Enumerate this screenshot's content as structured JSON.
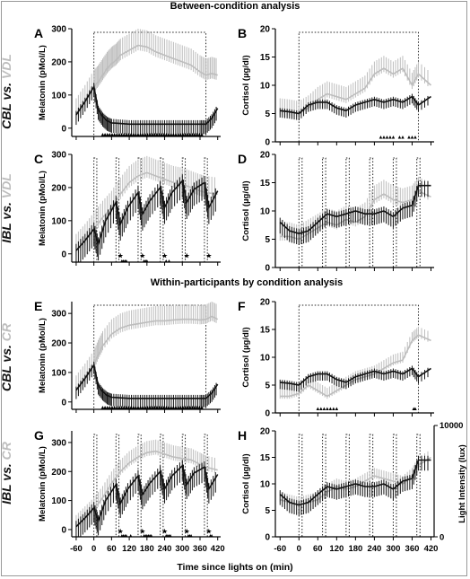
{
  "figure": {
    "title_between": "Between-condition analysis",
    "title_within": "Within-participants by condition analysis",
    "xlabel": "Time since lights on (min)",
    "row_labels": [
      {
        "a": "CBL",
        "vs": " vs. ",
        "b": "VDL"
      },
      {
        "a": "IBL",
        "vs": " vs. ",
        "b": "VDL"
      },
      {
        "a": "CBL",
        "vs": " vs. ",
        "b": "CR"
      },
      {
        "a": "IBL",
        "vs": " vs. ",
        "b": "CR"
      }
    ],
    "colors": {
      "black_series": "#111111",
      "gray_series": "#bdbdbd",
      "axis": "#000000"
    }
  },
  "chart_data": [
    {
      "panel": "A",
      "type": "line",
      "ylabel": "Melatonin (pMol/L)",
      "xticks": [
        -60,
        0,
        60,
        120,
        180,
        240,
        300,
        360,
        420
      ],
      "show_xticks": false,
      "yticks": [
        0,
        100,
        200,
        300
      ],
      "ylim": [
        -25,
        300
      ],
      "xlim": [
        -75,
        430
      ],
      "lights_box": [
        [
          0,
          380
        ]
      ],
      "series": [
        {
          "color": "black",
          "x": [
            -60,
            -30,
            0,
            15,
            30,
            45,
            60,
            90,
            120,
            150,
            180,
            210,
            240,
            270,
            300,
            330,
            360,
            380,
            400,
            420
          ],
          "y": [
            40,
            80,
            125,
            55,
            35,
            22,
            16,
            14,
            12,
            12,
            12,
            12,
            12,
            12,
            12,
            12,
            12,
            12,
            30,
            60
          ],
          "err": 30
        },
        {
          "color": "gray",
          "x": [
            -60,
            -30,
            0,
            15,
            30,
            45,
            60,
            75,
            90,
            120,
            150,
            180,
            210,
            240,
            270,
            300,
            330,
            360,
            380,
            400,
            420
          ],
          "y": [
            40,
            80,
            125,
            140,
            160,
            180,
            195,
            205,
            220,
            235,
            250,
            245,
            230,
            220,
            210,
            200,
            190,
            170,
            160,
            165,
            160
          ],
          "err": 50
        }
      ],
      "markers": [
        {
          "symbol": "▲",
          "x_range": [
            30,
            370
          ],
          "y": -15
        }
      ]
    },
    {
      "panel": "B",
      "type": "line",
      "ylabel": "Cortisol (µg/dl)",
      "xticks": [
        -60,
        0,
        60,
        120,
        180,
        240,
        300,
        360,
        420
      ],
      "show_xticks": false,
      "yticks": [
        0,
        5,
        10,
        15,
        20
      ],
      "ylim": [
        0,
        20
      ],
      "xlim": [
        -75,
        430
      ],
      "lights_box": [
        [
          0,
          380
        ]
      ],
      "series": [
        {
          "color": "black",
          "x": [
            -60,
            -30,
            0,
            30,
            60,
            90,
            120,
            150,
            180,
            210,
            240,
            270,
            300,
            330,
            360,
            380,
            420
          ],
          "y": [
            5.5,
            5.3,
            5.0,
            6.5,
            7.0,
            7.0,
            6.0,
            5.5,
            6.5,
            7.0,
            7.5,
            7.0,
            7.5,
            7.0,
            8.0,
            6.5,
            8.0
          ],
          "err": 1.2
        },
        {
          "color": "gray",
          "x": [
            -60,
            -30,
            0,
            30,
            60,
            90,
            120,
            150,
            180,
            210,
            240,
            270,
            300,
            330,
            360,
            380,
            420
          ],
          "y": [
            5.5,
            5.3,
            5.0,
            6.0,
            7.5,
            8.5,
            8.0,
            7.5,
            8.5,
            9.5,
            12.0,
            13.0,
            12.0,
            13.0,
            10.0,
            12.0,
            10.0
          ],
          "err": 2.2
        }
      ],
      "markers": [
        {
          "symbol": "▲",
          "x": [
            260,
            270,
            280,
            290,
            300,
            320,
            330,
            350,
            360,
            370
          ],
          "y": 1
        }
      ]
    },
    {
      "panel": "C",
      "type": "line",
      "ylabel": "Melatonin (pMol/L)",
      "xticks": [
        -60,
        0,
        60,
        120,
        180,
        240,
        300,
        360,
        420
      ],
      "show_xticks": false,
      "yticks": [
        0,
        100,
        200,
        300
      ],
      "ylim": [
        -25,
        300
      ],
      "xlim": [
        -75,
        430
      ],
      "lights_box": [
        [
          0,
          10
        ],
        [
          75,
          85
        ],
        [
          150,
          160
        ],
        [
          225,
          235
        ],
        [
          300,
          310
        ],
        [
          375,
          385
        ]
      ],
      "series": [
        {
          "color": "black",
          "x": [
            -60,
            -30,
            0,
            15,
            40,
            75,
            90,
            115,
            150,
            165,
            190,
            225,
            240,
            265,
            300,
            315,
            340,
            375,
            390,
            420
          ],
          "y": [
            10,
            40,
            75,
            30,
            100,
            155,
            90,
            140,
            185,
            120,
            160,
            200,
            140,
            185,
            220,
            155,
            195,
            215,
            140,
            190
          ],
          "err": 50
        },
        {
          "color": "gray",
          "x": [
            -60,
            -30,
            0,
            30,
            60,
            90,
            120,
            150,
            180,
            210,
            240,
            270,
            300,
            330,
            360,
            380,
            420
          ],
          "y": [
            10,
            40,
            75,
            110,
            140,
            180,
            215,
            235,
            245,
            235,
            225,
            215,
            210,
            200,
            190,
            185,
            180
          ],
          "err": 50
        }
      ],
      "markers": [
        {
          "symbol": "★",
          "x": [
            90,
            165,
            240,
            315,
            390
          ],
          "y": -5
        },
        {
          "symbol": "▲",
          "x": [
            95,
            100,
            105,
            110,
            170,
            175,
            180,
            245,
            255
          ],
          "y": -18
        }
      ]
    },
    {
      "panel": "D",
      "type": "line",
      "ylabel": "Cortisol (µg/dl)",
      "xticks": [
        -60,
        0,
        60,
        120,
        180,
        240,
        300,
        360,
        420
      ],
      "show_xticks": false,
      "yticks": [
        0,
        5,
        10,
        15,
        20
      ],
      "ylim": [
        0,
        20
      ],
      "xlim": [
        -75,
        430
      ],
      "lights_box": [
        [
          0,
          10
        ],
        [
          75,
          85
        ],
        [
          150,
          160
        ],
        [
          225,
          235
        ],
        [
          300,
          310
        ],
        [
          375,
          385
        ]
      ],
      "series": [
        {
          "color": "black",
          "x": [
            -60,
            -30,
            0,
            30,
            60,
            90,
            120,
            150,
            180,
            210,
            240,
            270,
            300,
            330,
            360,
            380,
            420
          ],
          "y": [
            8.0,
            6.5,
            6.0,
            6.5,
            8.0,
            9.5,
            9.0,
            9.5,
            10.0,
            9.5,
            9.5,
            10.0,
            9.0,
            10.5,
            11.0,
            14.5,
            14.5
          ],
          "err": 2
        },
        {
          "color": "gray",
          "x": [
            -60,
            -30,
            0,
            30,
            60,
            90,
            120,
            150,
            180,
            210,
            240,
            270,
            300,
            330,
            360,
            380,
            420
          ],
          "y": [
            5.5,
            5.5,
            5.0,
            6.0,
            7.0,
            8.0,
            7.5,
            8.5,
            8.0,
            9.0,
            12.0,
            13.0,
            12.0,
            11.5,
            12.0,
            13.5,
            12.5
          ],
          "err": 2.5
        }
      ],
      "markers": []
    },
    {
      "panel": "E",
      "type": "line",
      "ylabel": "Melatonin (pMol/L)",
      "xticks": [
        -60,
        0,
        60,
        120,
        180,
        240,
        300,
        360,
        420
      ],
      "show_xticks": false,
      "yticks": [
        0,
        100,
        200,
        300
      ],
      "ylim": [
        -25,
        340
      ],
      "xlim": [
        -75,
        430
      ],
      "lights_box": [
        [
          0,
          380
        ]
      ],
      "series": [
        {
          "color": "black",
          "x": [
            -60,
            -30,
            0,
            15,
            30,
            45,
            60,
            90,
            120,
            150,
            180,
            210,
            240,
            270,
            300,
            330,
            360,
            380,
            400,
            420
          ],
          "y": [
            40,
            80,
            125,
            55,
            35,
            22,
            16,
            14,
            12,
            12,
            12,
            12,
            12,
            12,
            12,
            12,
            12,
            12,
            30,
            60
          ],
          "err": 30
        },
        {
          "color": "gray",
          "x": [
            -60,
            -30,
            0,
            15,
            30,
            60,
            90,
            120,
            150,
            180,
            210,
            240,
            270,
            300,
            330,
            360,
            380,
            400,
            420
          ],
          "y": [
            40,
            80,
            125,
            160,
            190,
            230,
            250,
            260,
            265,
            270,
            275,
            275,
            278,
            280,
            280,
            278,
            280,
            290,
            280
          ],
          "err": 50
        }
      ],
      "markers": [
        {
          "symbol": "▲",
          "x_range": [
            30,
            370
          ],
          "y": -15
        }
      ]
    },
    {
      "panel": "F",
      "type": "line",
      "ylabel": "Cortisol (µg/dl)",
      "xticks": [
        -60,
        0,
        60,
        120,
        180,
        240,
        300,
        360,
        420
      ],
      "show_xticks": false,
      "yticks": [
        0,
        5,
        10,
        15,
        20
      ],
      "ylim": [
        0,
        20
      ],
      "xlim": [
        -75,
        430
      ],
      "lights_box": [
        [
          0,
          380
        ]
      ],
      "series": [
        {
          "color": "black",
          "x": [
            -60,
            -30,
            0,
            30,
            60,
            90,
            120,
            150,
            180,
            210,
            240,
            270,
            300,
            330,
            360,
            380,
            420
          ],
          "y": [
            5.5,
            5.3,
            5.0,
            6.5,
            7.0,
            7.0,
            6.0,
            5.5,
            6.5,
            7.0,
            7.5,
            7.0,
            7.5,
            7.0,
            8.0,
            6.5,
            8.0
          ],
          "err": 1.2
        },
        {
          "color": "gray",
          "x": [
            -60,
            -30,
            0,
            30,
            60,
            90,
            120,
            150,
            180,
            210,
            240,
            270,
            300,
            330,
            360,
            380,
            420
          ],
          "y": [
            3.0,
            3.0,
            3.5,
            5.0,
            4.0,
            3.0,
            4.0,
            5.0,
            6.0,
            6.5,
            7.0,
            8.0,
            9.0,
            9.5,
            13.0,
            14.0,
            13.0
          ],
          "err": 1.5
        }
      ],
      "markers": [
        {
          "symbol": "▲",
          "x": [
            60,
            70,
            80,
            90,
            100,
            110,
            120,
            365,
            370
          ],
          "y": 1
        }
      ]
    },
    {
      "panel": "G",
      "type": "line",
      "ylabel": "Melatonin (pMol/L)",
      "xticks": [
        -60,
        0,
        60,
        120,
        180,
        240,
        300,
        360,
        420
      ],
      "show_xticks": true,
      "yticks": [
        0,
        100,
        200,
        300
      ],
      "ylim": [
        -25,
        340
      ],
      "xlim": [
        -75,
        430
      ],
      "lights_box": [
        [
          0,
          10
        ],
        [
          75,
          85
        ],
        [
          150,
          160
        ],
        [
          225,
          235
        ],
        [
          300,
          310
        ],
        [
          375,
          385
        ]
      ],
      "series": [
        {
          "color": "black",
          "x": [
            -60,
            -30,
            0,
            15,
            40,
            75,
            90,
            115,
            150,
            165,
            190,
            225,
            240,
            265,
            300,
            315,
            340,
            375,
            390,
            420
          ],
          "y": [
            10,
            40,
            75,
            30,
            100,
            155,
            90,
            140,
            185,
            120,
            160,
            200,
            140,
            185,
            220,
            155,
            195,
            215,
            140,
            190
          ],
          "err": 50
        },
        {
          "color": "gray",
          "x": [
            -60,
            -30,
            0,
            30,
            60,
            90,
            120,
            150,
            180,
            210,
            240,
            270,
            300,
            330,
            360,
            380,
            420
          ],
          "y": [
            10,
            40,
            70,
            110,
            160,
            200,
            230,
            250,
            265,
            270,
            260,
            250,
            245,
            240,
            225,
            215,
            205
          ],
          "err": 40
        }
      ],
      "markers": [
        {
          "symbol": "★",
          "x": [
            90,
            165,
            240,
            315,
            390
          ],
          "y": -5
        },
        {
          "symbol": "▲",
          "x": [
            95,
            100,
            105,
            110,
            125,
            170,
            175,
            180,
            185,
            190,
            195,
            245,
            250,
            255,
            260,
            320,
            325,
            330,
            395,
            400
          ],
          "y": -18
        }
      ]
    },
    {
      "panel": "H",
      "type": "line",
      "ylabel": "Cortisol (µg/dl)",
      "y2label": "Light Intensity (lux)",
      "y2ticks": [
        "10000",
        "0"
      ],
      "xticks": [
        -60,
        0,
        60,
        120,
        180,
        240,
        300,
        360,
        420
      ],
      "show_xticks": true,
      "yticks": [
        0,
        5,
        10,
        15,
        20
      ],
      "ylim": [
        0,
        20
      ],
      "xlim": [
        -75,
        430
      ],
      "lights_box": [
        [
          0,
          10
        ],
        [
          75,
          85
        ],
        [
          150,
          160
        ],
        [
          225,
          235
        ],
        [
          300,
          310
        ],
        [
          375,
          385
        ]
      ],
      "series": [
        {
          "color": "black",
          "x": [
            -60,
            -30,
            0,
            30,
            60,
            90,
            120,
            150,
            180,
            210,
            240,
            270,
            300,
            330,
            360,
            380,
            420
          ],
          "y": [
            8.0,
            6.5,
            6.0,
            6.5,
            8.0,
            9.5,
            9.0,
            9.5,
            10.0,
            9.5,
            9.5,
            10.0,
            9.0,
            10.5,
            11.0,
            14.5,
            14.5
          ],
          "err": 2
        },
        {
          "color": "gray",
          "x": [
            -60,
            -30,
            0,
            30,
            60,
            90,
            120,
            150,
            180,
            210,
            240,
            270,
            300,
            330,
            360,
            380,
            420
          ],
          "y": [
            7.0,
            6.5,
            6.0,
            6.5,
            7.0,
            8.5,
            9.5,
            9.0,
            9.5,
            10.5,
            11.5,
            11.0,
            10.5,
            10.0,
            11.5,
            13.5,
            15.0
          ],
          "err": 1.5
        }
      ],
      "markers": []
    }
  ]
}
